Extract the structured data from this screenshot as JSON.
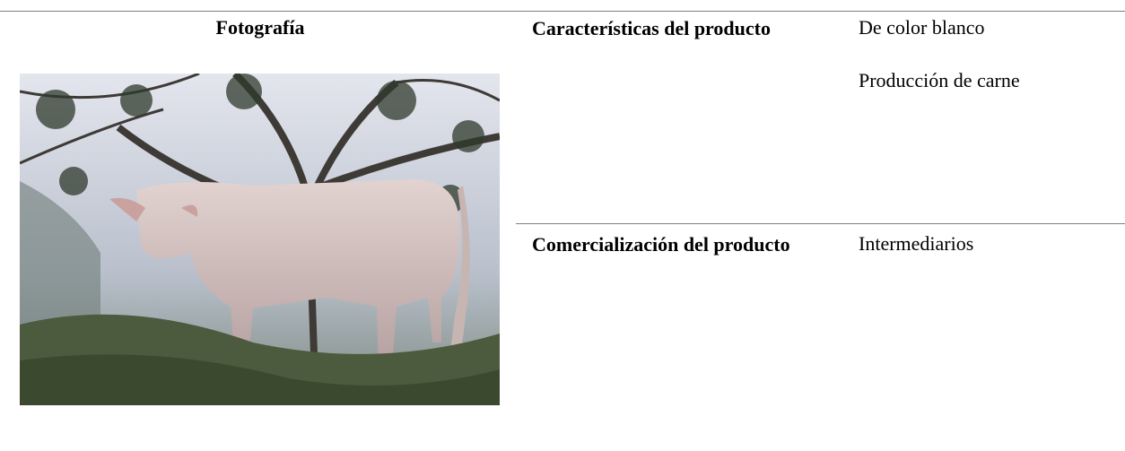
{
  "table": {
    "header": "Fotografía",
    "rows": [
      {
        "label": "Características del producto",
        "values": [
          "De color blanco",
          "Producción de carne"
        ]
      },
      {
        "label": "Comercialización del producto",
        "values": [
          "Intermediarios"
        ]
      }
    ]
  }
}
